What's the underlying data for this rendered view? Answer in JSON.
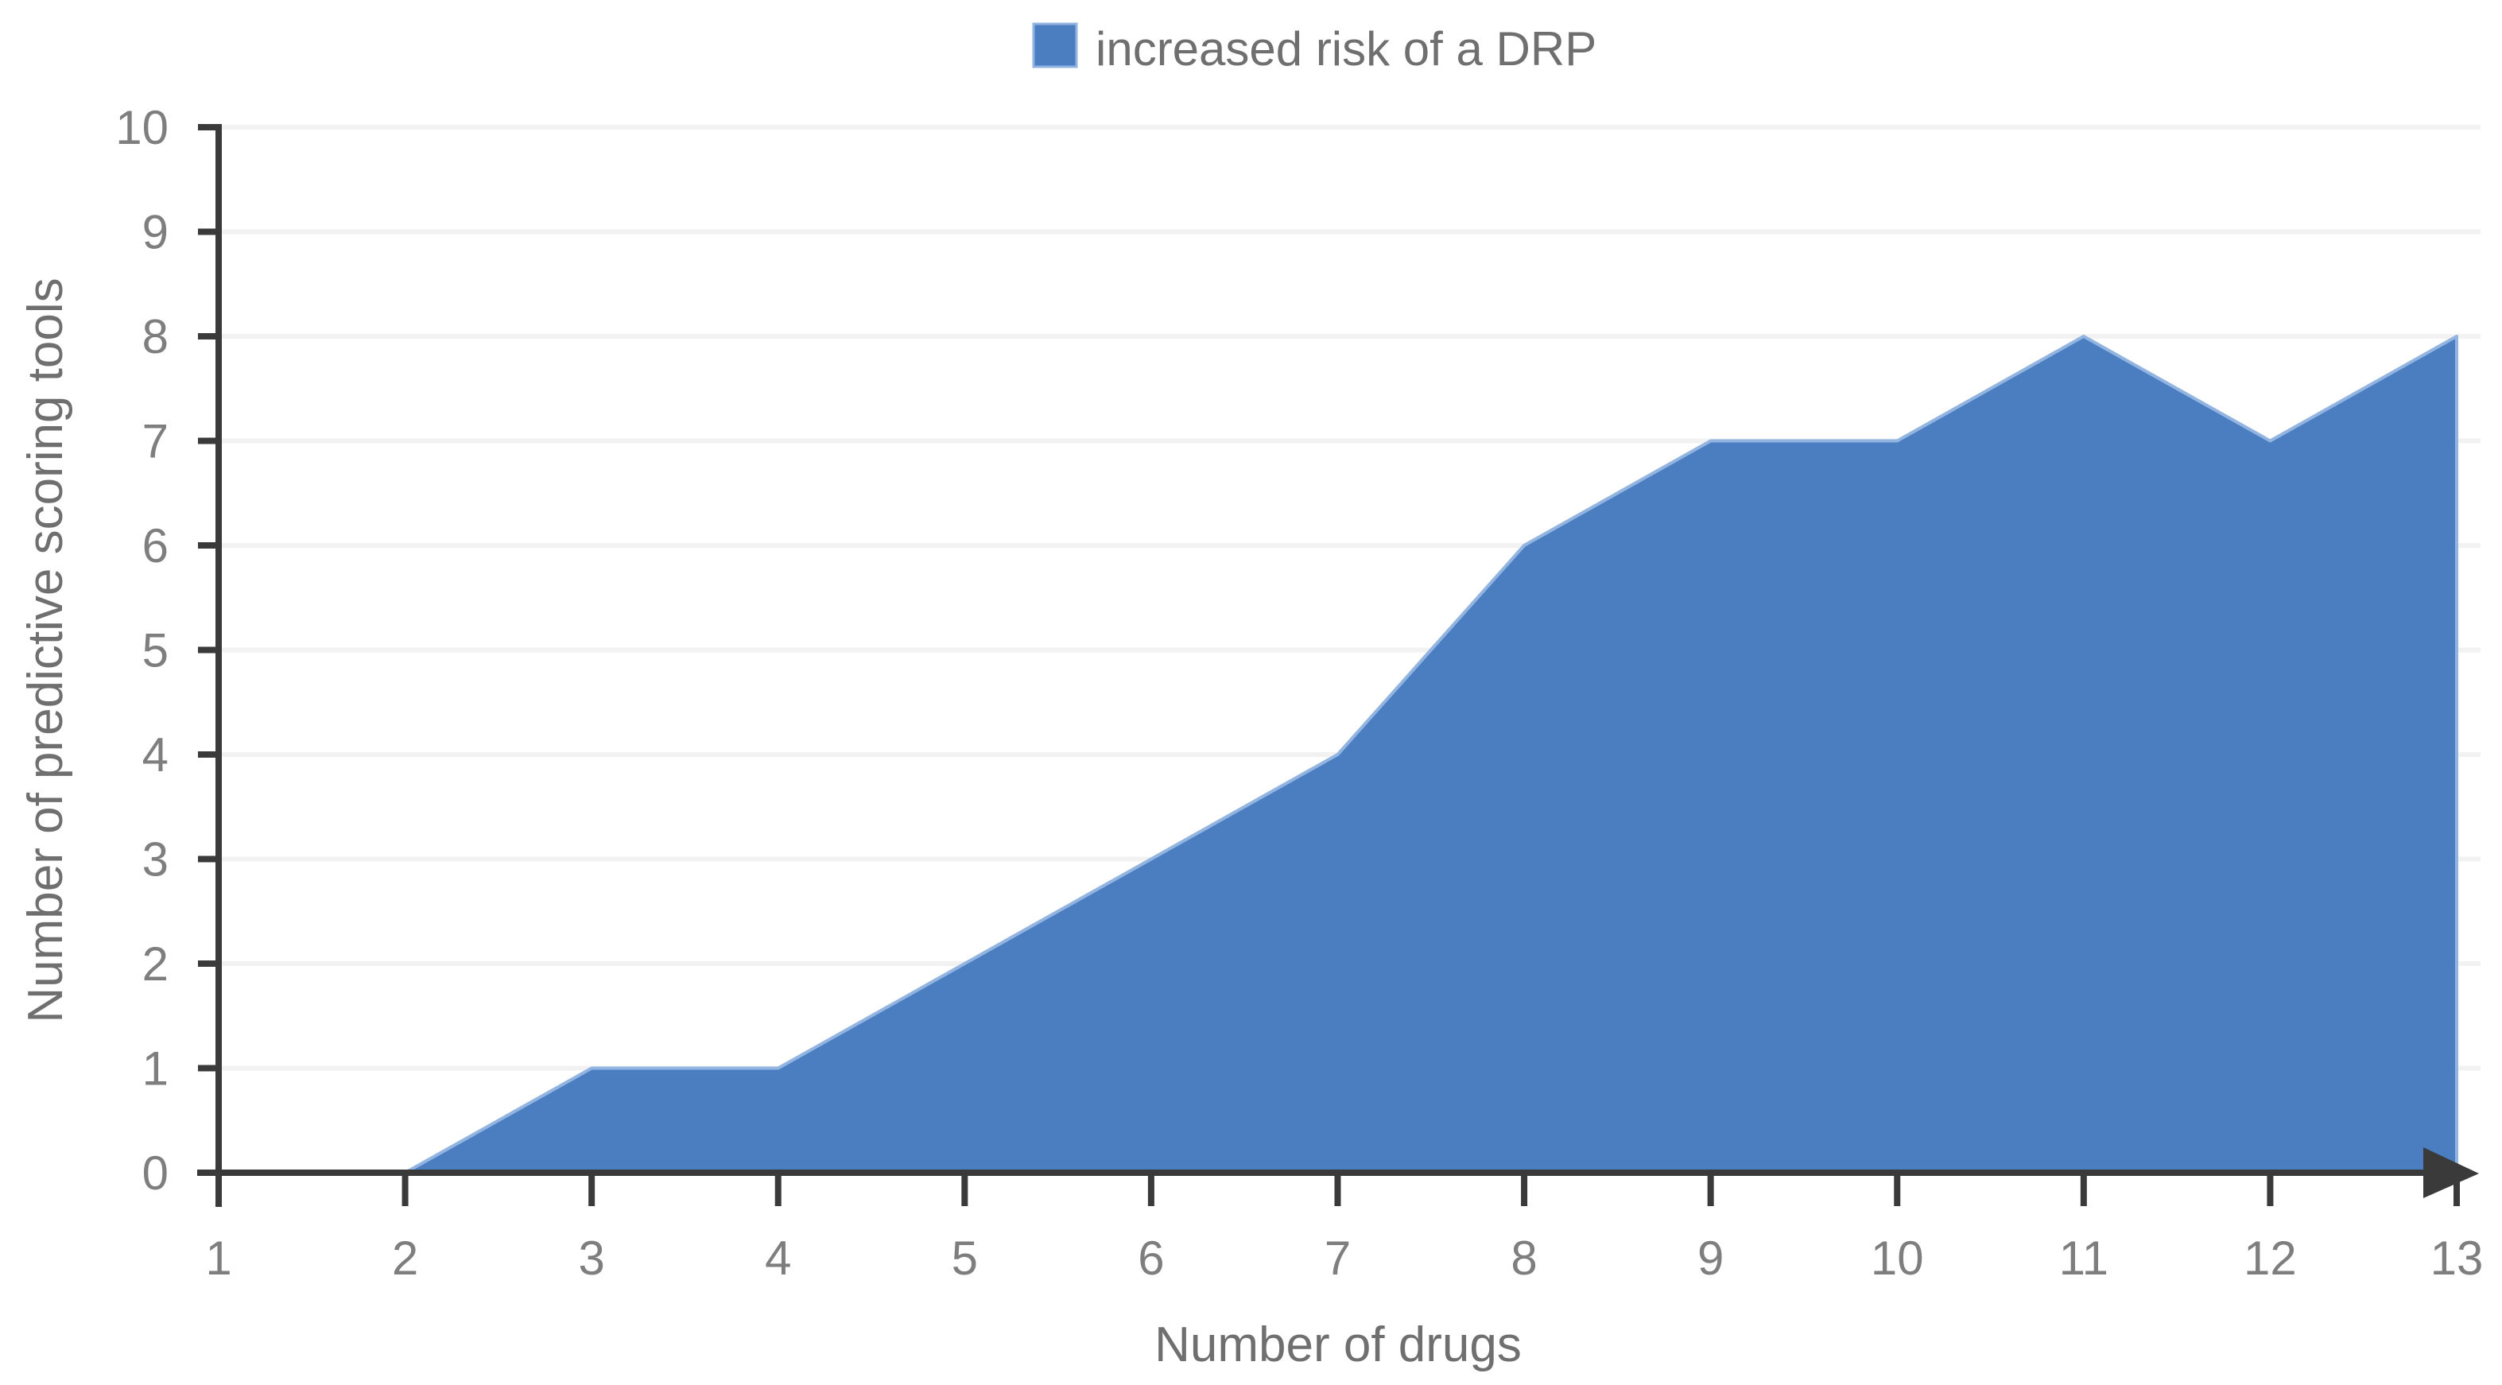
{
  "chart_data": {
    "type": "area",
    "x": [
      1,
      2,
      3,
      4,
      5,
      6,
      7,
      8,
      9,
      10,
      11,
      12,
      13
    ],
    "series": [
      {
        "name": "increased risk of a DRP",
        "values": [
          0,
          0,
          1,
          1,
          2,
          3,
          4,
          6,
          7,
          7,
          8,
          7,
          8
        ]
      }
    ],
    "title": "",
    "xlabel": "Number of drugs",
    "ylabel": "Number of predictive scoring tools",
    "xlim": [
      1,
      13
    ],
    "ylim": [
      0,
      10
    ],
    "xticks": [
      1,
      2,
      3,
      4,
      5,
      6,
      7,
      8,
      9,
      10,
      11,
      12,
      13
    ],
    "yticks": [
      0,
      1,
      2,
      3,
      4,
      5,
      6,
      7,
      8,
      9,
      10
    ],
    "grid": "horizontal",
    "legend_position": "top-center",
    "x_axis_arrow": "right",
    "colors": {
      "series_fill": "#4B7DC1",
      "series_border": "#92B4E0",
      "axis": "#3A3A3A",
      "gridline": "#F2F2F2",
      "tick_label": "#7E7E7E",
      "title_label": "#6F6F6F",
      "background": "#FFFFFF"
    }
  }
}
